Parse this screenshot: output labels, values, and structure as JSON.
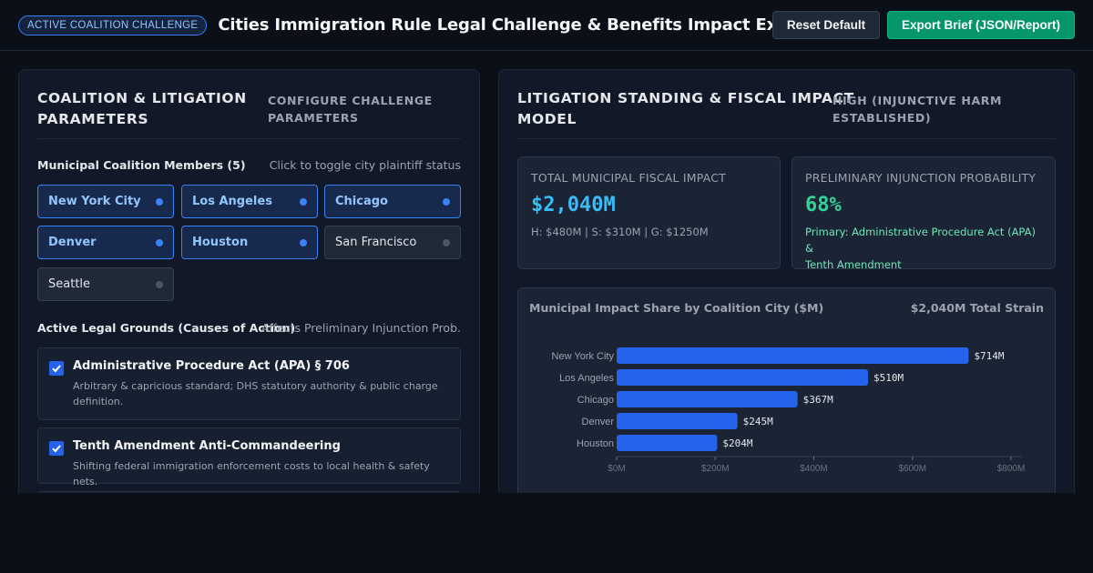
{
  "header": {
    "badge": "ACTIVE COALITION CHALLENGE",
    "title": "Cities Immigration Rule Legal Challenge & Benefits Impact Explorer",
    "reset_label": "Reset Default",
    "export_label": "Export Brief (JSON/Report)"
  },
  "left_panel": {
    "title_line1": "COALITION & LITIGATION",
    "title_line2": "PARAMETERS",
    "subtitle_line1": "CONFIGURE CHALLENGE",
    "subtitle_line2": "PARAMETERS",
    "members_label": "Municipal Coalition Members (5)",
    "members_hint": "Click to toggle city plaintiff status",
    "cities": [
      {
        "name": "New York City",
        "active": true
      },
      {
        "name": "Los Angeles",
        "active": true
      },
      {
        "name": "Chicago",
        "active": true
      },
      {
        "name": "Denver",
        "active": true
      },
      {
        "name": "Houston",
        "active": true
      },
      {
        "name": "San Francisco",
        "active": false
      },
      {
        "name": "Seattle",
        "active": false
      }
    ],
    "grounds_label": "Active Legal Grounds (Causes of Action)",
    "grounds_hint": "Affects Preliminary Injunction Prob.",
    "grounds": [
      {
        "title": "Administrative Procedure Act (APA) § 706",
        "desc_line1": "Arbitrary & capricious standard; DHS statutory authority & public charge",
        "desc_line2": "definition.",
        "checked": true
      },
      {
        "title": "Tenth Amendment Anti-Commandeering",
        "desc_line1": "Shifting federal immigration enforcement costs to local health & safety nets.",
        "desc_line2": "",
        "checked": true
      }
    ]
  },
  "right_panel": {
    "title_line1": "LITIGATION STANDING & FISCAL IMPACT",
    "title_line2": "MODEL",
    "subtitle_line1": "HIGH (INJUNCTIVE HARM",
    "subtitle_line2": "ESTABLISHED)",
    "kpi_fiscal": {
      "label": "TOTAL MUNICIPAL FISCAL IMPACT",
      "value": "$2,040M",
      "note": "H: $480M | S: $310M | G: $1250M",
      "color": "#38bdf8"
    },
    "kpi_injunction": {
      "label": "PRELIMINARY INJUNCTION PROBABILITY",
      "value": "68%",
      "note_line1": "Primary: Administrative Procedure Act (APA) &",
      "note_line2": "Tenth Amendment",
      "color": "#34d399"
    },
    "chart_title": "Municipal Impact Share by Coalition City ($M)",
    "chart_total": "$2,040M Total Strain"
  },
  "chart_data": {
    "type": "bar",
    "orientation": "horizontal",
    "title": "Municipal Impact Share by Coalition City ($M)",
    "categories": [
      "New York City",
      "Los Angeles",
      "Chicago",
      "Denver",
      "Houston"
    ],
    "values": [
      714,
      510,
      367,
      245,
      204
    ],
    "value_labels": [
      "$714M",
      "$510M",
      "$367M",
      "$245M",
      "$204M"
    ],
    "xlim": [
      0,
      800
    ],
    "x_ticks": [
      0,
      200,
      400,
      600,
      800
    ],
    "x_tick_labels": [
      "$0M",
      "$200M",
      "$400M",
      "$600M",
      "$800M"
    ],
    "bar_color": "#2563eb",
    "grid": false
  }
}
